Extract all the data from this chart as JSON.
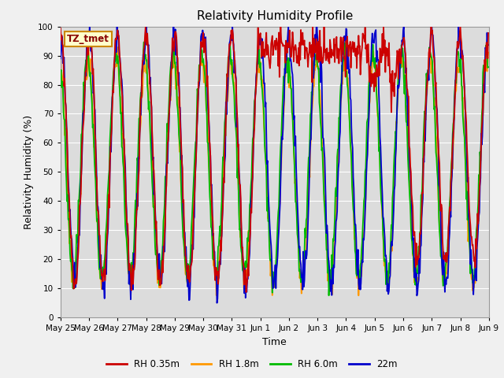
{
  "title": "Relativity Humidity Profile",
  "xlabel": "Time",
  "ylabel": "Relativity Humidity (%)",
  "ylim": [
    0,
    100
  ],
  "annotation_text": "TZ_tmet",
  "annotation_bg": "#ffffcc",
  "annotation_border": "#cc8800",
  "annotation_text_color": "#880000",
  "plot_bg": "#dcdcdc",
  "fig_bg": "#f0f0f0",
  "grid_color": "#ffffff",
  "colors": {
    "RH 0.35m": "#cc0000",
    "RH 1.8m": "#ff9900",
    "RH 6.0m": "#00bb00",
    "22m": "#0000cc"
  },
  "legend_labels": [
    "RH 0.35m",
    "RH 1.8m",
    "RH 6.0m",
    "22m"
  ],
  "xtick_labels": [
    "May 25",
    "May 26",
    "May 27",
    "May 28",
    "May 29",
    "May 30",
    "May 31",
    "Jun 1",
    "Jun 2",
    "Jun 3",
    "Jun 4",
    "Jun 5",
    "Jun 6",
    "Jun 7",
    "Jun 8",
    "Jun 9"
  ],
  "ytick_values": [
    0,
    10,
    20,
    30,
    40,
    50,
    60,
    70,
    80,
    90,
    100
  ],
  "linewidth": 1.3
}
